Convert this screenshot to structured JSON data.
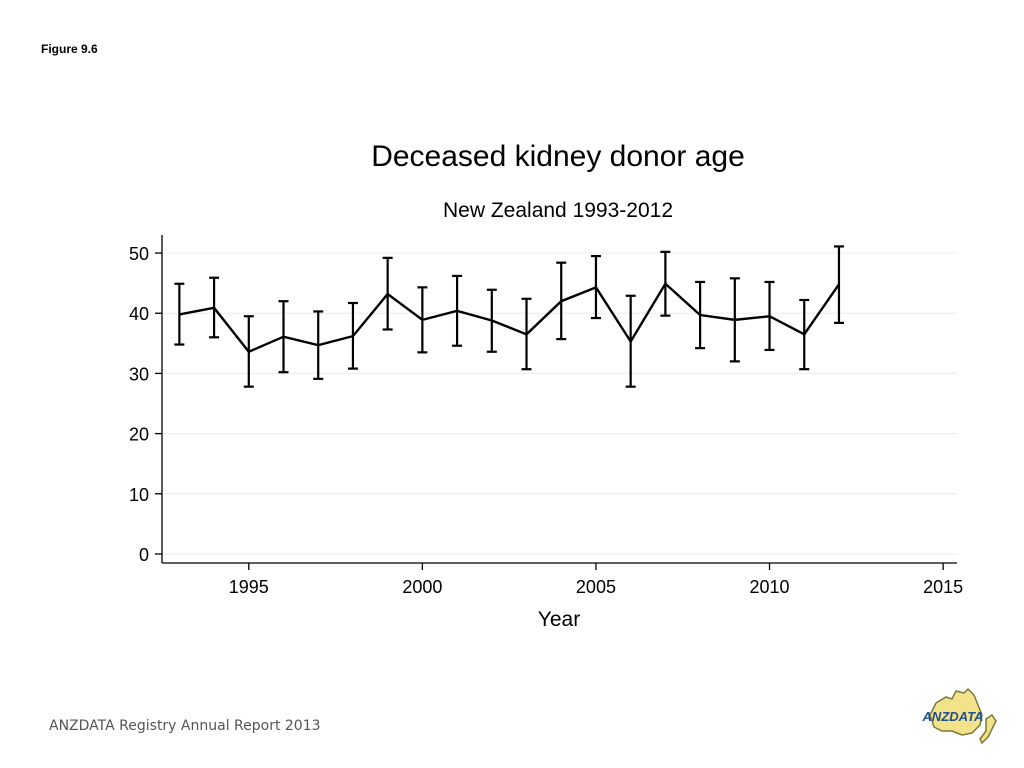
{
  "figure_label": "Figure 9.6",
  "footer_text": "ANZDATA Registry Annual Report 2013",
  "logo": {
    "text": "ANZDATA",
    "icon": "anzdata-australia-map-logo",
    "colors": {
      "fill": "#f2e28a",
      "stroke": "#7a7a3a",
      "text": "#1f4e8c"
    }
  },
  "chart_data": {
    "type": "line",
    "title": "Deceased kidney donor age",
    "subtitle": "New Zealand 1993-2012",
    "xlabel": "Year",
    "ylabel": "",
    "xlim": [
      1992.5,
      2015.4
    ],
    "ylim": [
      -1.5,
      53
    ],
    "xticks": [
      1995,
      2000,
      2005,
      2010,
      2015
    ],
    "yticks": [
      0,
      10,
      20,
      30,
      40,
      50
    ],
    "grid": true,
    "error_bars": true,
    "series": [
      {
        "x": [
          1993,
          1994,
          1995,
          1996,
          1997,
          1998,
          1999,
          2000,
          2001,
          2002,
          2003,
          2004,
          2005,
          2006,
          2007,
          2008,
          2009,
          2010,
          2011,
          2012
        ],
        "y": [
          39.8,
          40.9,
          33.6,
          36.1,
          34.7,
          36.2,
          43.2,
          38.9,
          40.4,
          38.8,
          36.5,
          42.0,
          44.3,
          35.3,
          44.9,
          39.7,
          38.9,
          39.5,
          36.5,
          44.8
        ],
        "lower": [
          34.8,
          36.0,
          27.8,
          30.2,
          29.1,
          30.8,
          37.3,
          33.5,
          34.6,
          33.6,
          30.7,
          35.7,
          39.2,
          27.8,
          39.6,
          34.2,
          32.0,
          33.9,
          30.7,
          38.4
        ],
        "upper": [
          44.9,
          45.9,
          39.5,
          42.0,
          40.3,
          41.7,
          49.2,
          44.3,
          46.2,
          43.9,
          42.4,
          48.4,
          49.5,
          42.9,
          50.2,
          45.2,
          45.8,
          45.2,
          42.2,
          51.1
        ]
      }
    ],
    "colors": {
      "line": "#000000",
      "grid": "#ececec",
      "axis": "#000000"
    }
  }
}
